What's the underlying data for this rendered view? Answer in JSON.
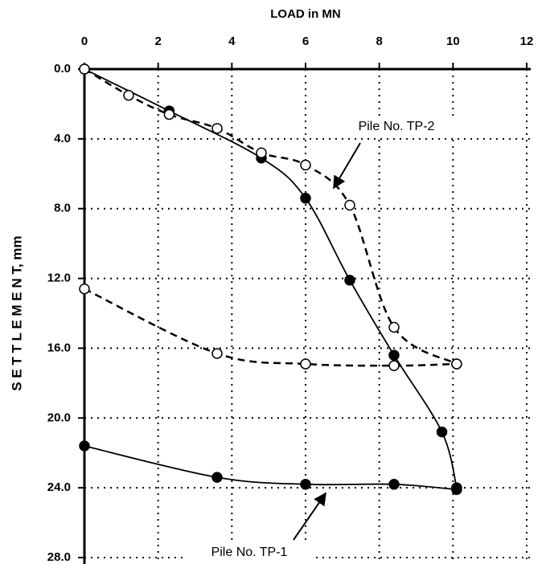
{
  "chart_data": {
    "type": "scatter",
    "x_label": "LOAD in MN",
    "y_label": "S E T T L E M E N T, mm",
    "xlim": [
      0,
      12
    ],
    "xticks": [
      0,
      2,
      4,
      6,
      8,
      10,
      12
    ],
    "ylim": [
      0,
      28
    ],
    "y_inverted": true,
    "yticks": [
      {
        "value": 0,
        "label": "0.0"
      },
      {
        "value": 4,
        "label": "4.0"
      },
      {
        "value": 8,
        "label": "8.0"
      },
      {
        "value": 12,
        "label": "12.0"
      },
      {
        "value": 16,
        "label": "16.0"
      },
      {
        "value": 20,
        "label": "20.0"
      },
      {
        "value": 24,
        "label": "24.0"
      },
      {
        "value": 28,
        "label": "28.0"
      }
    ],
    "grid": true,
    "series": [
      {
        "marker": "filled",
        "dash": false,
        "color": "#000000",
        "x": [
          0,
          2.3,
          4.8,
          6,
          7.2,
          8.4,
          9.7,
          10.1
        ],
        "values": [
          0,
          2.4,
          5.1,
          7.4,
          12.1,
          16.4,
          20.8,
          24.0
        ]
      },
      {
        "marker": "filled",
        "dash": false,
        "color": "#000000",
        "x": [
          0,
          3.6,
          6,
          8.4,
          10.1
        ],
        "values": [
          21.6,
          23.4,
          23.8,
          23.8,
          24.1
        ]
      },
      {
        "marker": "open",
        "dash": true,
        "color": "#000000",
        "x": [
          0,
          1.2,
          2.3,
          3.6,
          4.8,
          6,
          7.2,
          8.4,
          10.1
        ],
        "values": [
          0,
          1.5,
          2.6,
          3.4,
          4.8,
          5.5,
          7.8,
          14.8,
          16.9
        ]
      },
      {
        "marker": "open",
        "dash": true,
        "color": "#000000",
        "x": [
          0,
          3.6,
          6,
          8.4,
          10.1
        ],
        "values": [
          12.6,
          16.3,
          16.9,
          17.0,
          16.9
        ]
      }
    ],
    "annotations": [
      "Pile No. TP-2",
      "Pile No. TP-1"
    ]
  }
}
